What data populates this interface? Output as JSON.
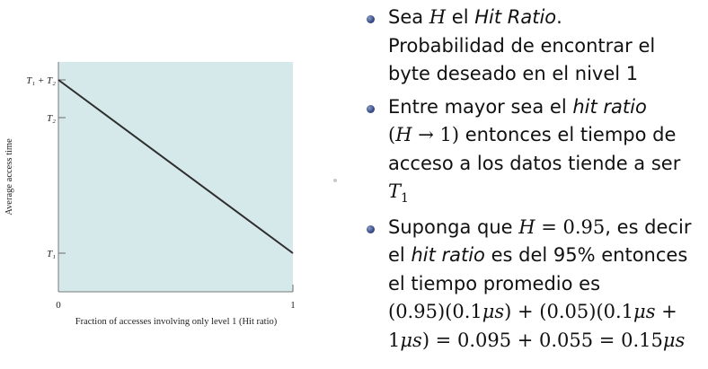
{
  "chart_data": {
    "type": "line",
    "xlabel": "Fraction of accesses involving only level 1 (Hit ratio)",
    "ylabel": "Average access time",
    "x_ticks": [
      "0",
      "1"
    ],
    "y_ticks": [
      "T₁ + T₂",
      "T₂",
      "T₁"
    ],
    "xlim": [
      0,
      1
    ],
    "series": [
      {
        "points": [
          {
            "x": 0,
            "y": "T₁ + T₂"
          },
          {
            "x": 1,
            "y": "T₁"
          }
        ]
      }
    ],
    "colors": {
      "plot_background": "#d5e8ea",
      "line": "#2e2e2e"
    },
    "grid": false
  },
  "bullets": [
    {
      "lines": [
        "Sea H el Hit Ratio.",
        "Probabilidad de encontrar el",
        "byte deseado en el nivel 1"
      ]
    },
    {
      "lines": [
        "Entre mayor sea el hit ratio",
        "(H → 1) entonces el tiempo de",
        "acceso a los datos tiende a ser",
        "T₁"
      ]
    },
    {
      "lines": [
        "Suponga que H = 0.95, es decir",
        "el hit ratio es del 95% entonces",
        "el tiempo promedio es",
        "(0.95)(0.1μs) + (0.05)(0.1μs +",
        "1μs) = 0.095 + 0.055 = 0.15μs"
      ]
    }
  ],
  "colors": {
    "bullet": "#3c4f8a",
    "text": "#111111"
  }
}
